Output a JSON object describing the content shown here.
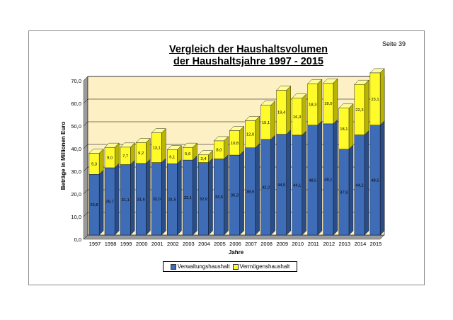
{
  "page": {
    "label": "Seite 39"
  },
  "colors": {
    "blue": "#3f6cb6",
    "blue_dark": "#2b4d87",
    "yellow": "#fffb2a",
    "yellow_dark": "#b8b400",
    "plot_bg": "#fcf0c4",
    "grid": "#000000"
  },
  "chart_data": {
    "type": "bar",
    "stacked": true,
    "title": "Vergleich der Haushaltsvolumen",
    "subtitle": "der Haushaltsjahre 1997 - 2015",
    "xlabel": "Jahre",
    "ylabel": "Beträge in Millionen Euro",
    "ylim": [
      0,
      70
    ],
    "yticks": [
      "0,0",
      "10,0",
      "20,0",
      "30,0",
      "40,0",
      "50,0",
      "60,0",
      "70,0"
    ],
    "grid": true,
    "legend_position": "bottom",
    "categories": [
      "1997",
      "1998",
      "1999",
      "2000",
      "2001",
      "2002",
      "2003",
      "2004",
      "2005",
      "2006",
      "2007",
      "2008",
      "2009",
      "2010",
      "2011",
      "2012",
      "2013",
      "2014",
      "2015"
    ],
    "series": [
      {
        "name": "Verwaltungshaushalt",
        "values": [
          26.8,
          29.7,
          31.1,
          31.6,
          32.0,
          31.5,
          33.1,
          32.0,
          33.6,
          35.3,
          38.5,
          42.2,
          44.5,
          44.1,
          48.5,
          49.1,
          37.9,
          44.2,
          48.5
        ],
        "labels": [
          "26,8",
          "29,7",
          "31,1",
          "31,6",
          "32,0",
          "31,5",
          "33,1",
          "32,0",
          "33,6",
          "35,3",
          "38,5",
          "42,2",
          "44,5",
          "44,1",
          "48,5",
          "49,1",
          "37,9",
          "44,2",
          "48,5"
        ]
      },
      {
        "name": "Vermögenshaushalt",
        "values": [
          9.3,
          9.0,
          7.7,
          9.2,
          13.1,
          6.1,
          5.6,
          3.4,
          8.0,
          10.8,
          12.0,
          15.1,
          19.4,
          16.3,
          18.3,
          18.0,
          18.1,
          22.3,
          23.1
        ],
        "labels": [
          "9,3",
          "9,0",
          "7,7",
          "9,2",
          "13,1",
          "6,1",
          "5,6",
          "3,4",
          "8,0",
          "10,8",
          "12,0",
          "15,1",
          "19,4",
          "16,3",
          "18,3",
          "18,0",
          "18,1",
          "22,3",
          "23,1"
        ]
      }
    ]
  }
}
